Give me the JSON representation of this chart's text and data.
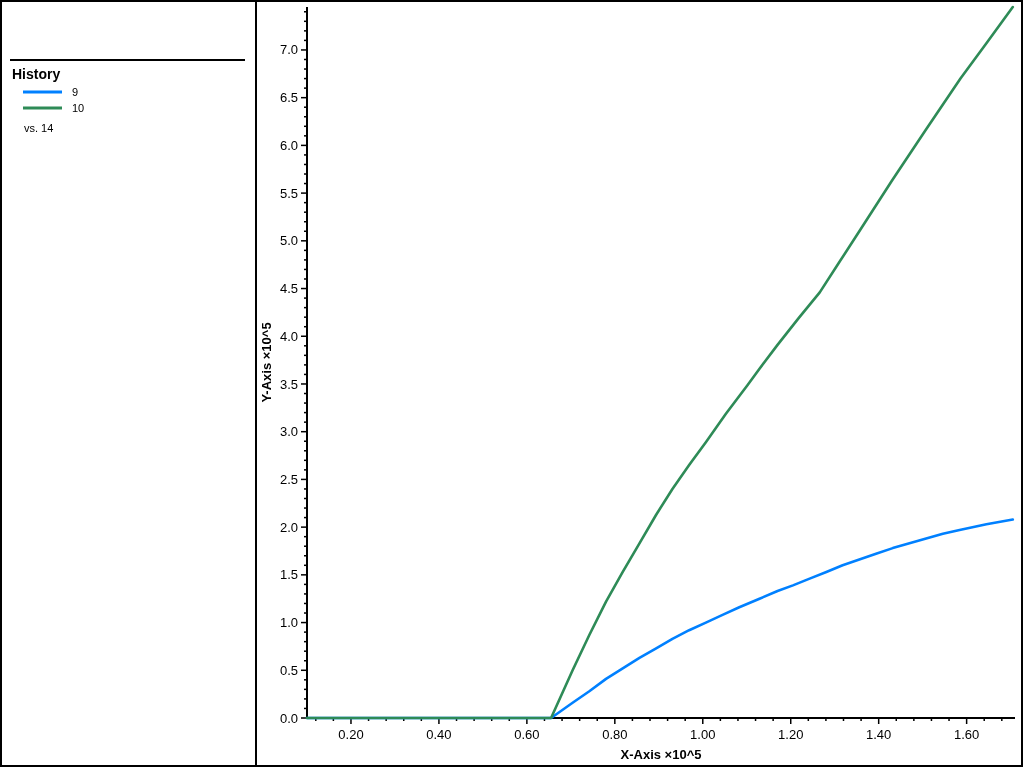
{
  "chart_data": {
    "type": "line",
    "xlabel": "X-Axis ×10^5",
    "ylabel": "Y-Axis ×10^5",
    "legend_title": "History",
    "legend": "left",
    "annotations": [
      "vs. 14"
    ],
    "xlim": [
      0.1,
      1.71
    ],
    "ylim": [
      0,
      7.45
    ],
    "xticks": [
      {
        "value": 0.12,
        "label": null
      },
      {
        "value": 0.16,
        "label": null
      },
      {
        "value": 0.2,
        "label": "0.20"
      },
      {
        "value": 0.24,
        "label": null
      },
      {
        "value": 0.28,
        "label": null
      },
      {
        "value": 0.32,
        "label": null
      },
      {
        "value": 0.36,
        "label": null
      },
      {
        "value": 0.4,
        "label": "0.40"
      },
      {
        "value": 0.44,
        "label": null
      },
      {
        "value": 0.48,
        "label": null
      },
      {
        "value": 0.52,
        "label": null
      },
      {
        "value": 0.56,
        "label": null
      },
      {
        "value": 0.6,
        "label": "0.60"
      },
      {
        "value": 0.64,
        "label": null
      },
      {
        "value": 0.68,
        "label": null
      },
      {
        "value": 0.72,
        "label": null
      },
      {
        "value": 0.76,
        "label": null
      },
      {
        "value": 0.8,
        "label": "0.80"
      },
      {
        "value": 0.84,
        "label": null
      },
      {
        "value": 0.88,
        "label": null
      },
      {
        "value": 0.92,
        "label": null
      },
      {
        "value": 0.96,
        "label": null
      },
      {
        "value": 1.0,
        "label": "1.00"
      },
      {
        "value": 1.04,
        "label": null
      },
      {
        "value": 1.08,
        "label": null
      },
      {
        "value": 1.12,
        "label": null
      },
      {
        "value": 1.16,
        "label": null
      },
      {
        "value": 1.2,
        "label": "1.20"
      },
      {
        "value": 1.24,
        "label": null
      },
      {
        "value": 1.28,
        "label": null
      },
      {
        "value": 1.32,
        "label": null
      },
      {
        "value": 1.36,
        "label": null
      },
      {
        "value": 1.4,
        "label": "1.40"
      },
      {
        "value": 1.44,
        "label": null
      },
      {
        "value": 1.48,
        "label": null
      },
      {
        "value": 1.52,
        "label": null
      },
      {
        "value": 1.56,
        "label": null
      },
      {
        "value": 1.6,
        "label": "1.60"
      },
      {
        "value": 1.64,
        "label": null
      },
      {
        "value": 1.68,
        "label": null
      }
    ],
    "yticks": [
      {
        "value": 0,
        "label": "0.0"
      },
      {
        "value": 0.1,
        "label": null
      },
      {
        "value": 0.2,
        "label": null
      },
      {
        "value": 0.3,
        "label": null
      },
      {
        "value": 0.4,
        "label": null
      },
      {
        "value": 0.5,
        "label": "0.5"
      },
      {
        "value": 0.6,
        "label": null
      },
      {
        "value": 0.7,
        "label": null
      },
      {
        "value": 0.8,
        "label": null
      },
      {
        "value": 0.9,
        "label": null
      },
      {
        "value": 1.0,
        "label": "1.0"
      },
      {
        "value": 1.1,
        "label": null
      },
      {
        "value": 1.2,
        "label": null
      },
      {
        "value": 1.3,
        "label": null
      },
      {
        "value": 1.4,
        "label": null
      },
      {
        "value": 1.5,
        "label": "1.5"
      },
      {
        "value": 1.6,
        "label": null
      },
      {
        "value": 1.7,
        "label": null
      },
      {
        "value": 1.8,
        "label": null
      },
      {
        "value": 1.9,
        "label": null
      },
      {
        "value": 2.0,
        "label": "2.0"
      },
      {
        "value": 2.1,
        "label": null
      },
      {
        "value": 2.2,
        "label": null
      },
      {
        "value": 2.3,
        "label": null
      },
      {
        "value": 2.4,
        "label": null
      },
      {
        "value": 2.5,
        "label": "2.5"
      },
      {
        "value": 2.6,
        "label": null
      },
      {
        "value": 2.7,
        "label": null
      },
      {
        "value": 2.8,
        "label": null
      },
      {
        "value": 2.9,
        "label": null
      },
      {
        "value": 3.0,
        "label": "3.0"
      },
      {
        "value": 3.1,
        "label": null
      },
      {
        "value": 3.2,
        "label": null
      },
      {
        "value": 3.3,
        "label": null
      },
      {
        "value": 3.4,
        "label": null
      },
      {
        "value": 3.5,
        "label": "3.5"
      },
      {
        "value": 3.6,
        "label": null
      },
      {
        "value": 3.7,
        "label": null
      },
      {
        "value": 3.8,
        "label": null
      },
      {
        "value": 3.9,
        "label": null
      },
      {
        "value": 4.0,
        "label": "4.0"
      },
      {
        "value": 4.1,
        "label": null
      },
      {
        "value": 4.2,
        "label": null
      },
      {
        "value": 4.3,
        "label": null
      },
      {
        "value": 4.4,
        "label": null
      },
      {
        "value": 4.5,
        "label": "4.5"
      },
      {
        "value": 4.6,
        "label": null
      },
      {
        "value": 4.7,
        "label": null
      },
      {
        "value": 4.8,
        "label": null
      },
      {
        "value": 4.9,
        "label": null
      },
      {
        "value": 5.0,
        "label": "5.0"
      },
      {
        "value": 5.1,
        "label": null
      },
      {
        "value": 5.2,
        "label": null
      },
      {
        "value": 5.3,
        "label": null
      },
      {
        "value": 5.4,
        "label": null
      },
      {
        "value": 5.5,
        "label": "5.5"
      },
      {
        "value": 5.6,
        "label": null
      },
      {
        "value": 5.7,
        "label": null
      },
      {
        "value": 5.8,
        "label": null
      },
      {
        "value": 5.9,
        "label": null
      },
      {
        "value": 6.0,
        "label": "6.0"
      },
      {
        "value": 6.1,
        "label": null
      },
      {
        "value": 6.2,
        "label": null
      },
      {
        "value": 6.3,
        "label": null
      },
      {
        "value": 6.4,
        "label": null
      },
      {
        "value": 6.5,
        "label": "6.5"
      },
      {
        "value": 6.6,
        "label": null
      },
      {
        "value": 6.7,
        "label": null
      },
      {
        "value": 6.8,
        "label": null
      },
      {
        "value": 6.9,
        "label": null
      },
      {
        "value": 7.0,
        "label": "7.0"
      },
      {
        "value": 7.1,
        "label": null
      },
      {
        "value": 7.2,
        "label": null
      },
      {
        "value": 7.3,
        "label": null
      },
      {
        "value": 7.4,
        "label": null
      }
    ],
    "series": [
      {
        "name": "9",
        "color": "#0080ff",
        "x": [
          0.1,
          0.655,
          0.704,
          0.742,
          0.78,
          0.818,
          0.856,
          0.894,
          0.931,
          0.969,
          1.007,
          1.045,
          1.083,
          1.129,
          1.17,
          1.205,
          1.243,
          1.281,
          1.318,
          1.356,
          1.394,
          1.432,
          1.47,
          1.508,
          1.546,
          1.584,
          1.645,
          1.705
        ],
        "values": [
          0,
          0,
          0.16,
          0.28,
          0.41,
          0.52,
          0.63,
          0.73,
          0.83,
          0.92,
          1.0,
          1.08,
          1.16,
          1.25,
          1.33,
          1.39,
          1.46,
          1.53,
          1.6,
          1.66,
          1.72,
          1.78,
          1.83,
          1.88,
          1.93,
          1.97,
          2.03,
          2.08
        ]
      },
      {
        "name": "10",
        "color": "#2e8b57",
        "x": [
          0.1,
          0.655,
          0.704,
          0.742,
          0.78,
          0.818,
          0.856,
          0.894,
          0.931,
          0.969,
          1.007,
          1.053,
          1.102,
          1.129,
          1.17,
          1.218,
          1.266,
          1.311,
          1.356,
          1.43,
          1.508,
          1.586,
          1.645,
          1.705
        ],
        "values": [
          0,
          0,
          0.5,
          0.87,
          1.22,
          1.53,
          1.83,
          2.13,
          2.4,
          2.65,
          2.89,
          3.19,
          3.49,
          3.66,
          3.91,
          4.19,
          4.46,
          4.78,
          5.1,
          5.63,
          6.17,
          6.7,
          7.07,
          7.45
        ]
      }
    ]
  }
}
